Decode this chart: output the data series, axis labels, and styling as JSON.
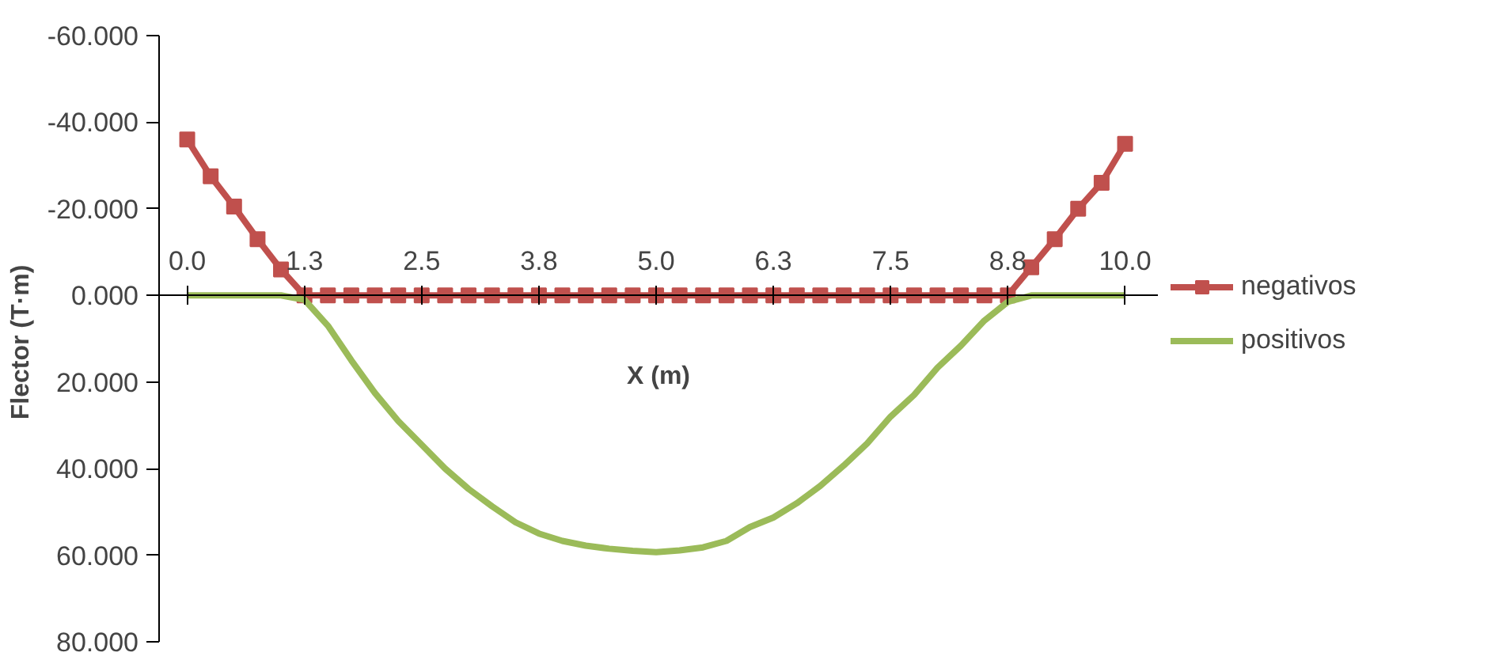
{
  "chart_data": {
    "type": "line",
    "xlabel": "X (m)",
    "ylabel": "Flector  (T·m)",
    "x": [
      0,
      0.25,
      0.5,
      0.75,
      1.0,
      1.25,
      1.5,
      1.75,
      2.0,
      2.25,
      2.5,
      2.75,
      3.0,
      3.25,
      3.5,
      3.75,
      4.0,
      4.25,
      4.5,
      4.75,
      5.0,
      5.25,
      5.5,
      5.75,
      6.0,
      6.25,
      6.5,
      6.75,
      7.0,
      7.25,
      7.5,
      7.75,
      8.0,
      8.25,
      8.5,
      8.75,
      9.0,
      9.25,
      9.5,
      9.75,
      10.0
    ],
    "series": [
      {
        "name": "negativos",
        "color": "#c0504d",
        "marker": "square",
        "values": [
          -36,
          -27.5,
          -20.5,
          -13,
          -6,
          0,
          0,
          0,
          0,
          0,
          0,
          0,
          0,
          0,
          0,
          0,
          0,
          0,
          0,
          0,
          0,
          0,
          0,
          0,
          0,
          0,
          0,
          0,
          0,
          0,
          0,
          0,
          0,
          0,
          0,
          0,
          -6.5,
          -13,
          -20,
          -26,
          -35
        ]
      },
      {
        "name": "positivos",
        "color": "#9bbb59",
        "marker": "none",
        "values": [
          0,
          0,
          0,
          0,
          0,
          1,
          7,
          15,
          22.5,
          29,
          34.5,
          40,
          44.7,
          48.7,
          52.4,
          55,
          56.7,
          57.8,
          58.5,
          59,
          59.3,
          58.9,
          58.2,
          56.7,
          53.5,
          51.3,
          48,
          44,
          39.3,
          34.2,
          28,
          23,
          16.7,
          11.6,
          5.8,
          1.5,
          0,
          0,
          0,
          0,
          0
        ]
      }
    ],
    "xlim": [
      -0.3,
      10.35
    ],
    "xticks": [
      {
        "value": 0,
        "label": "0.0"
      },
      {
        "value": 1.25,
        "label": "1.3"
      },
      {
        "value": 2.5,
        "label": "2.5"
      },
      {
        "value": 3.75,
        "label": "3.8"
      },
      {
        "value": 5,
        "label": "5.0"
      },
      {
        "value": 6.25,
        "label": "6.3"
      },
      {
        "value": 7.5,
        "label": "7.5"
      },
      {
        "value": 8.75,
        "label": "8.8"
      },
      {
        "value": 10,
        "label": "10.0"
      }
    ],
    "ylim": [
      80,
      -60
    ],
    "yticks": [
      {
        "value": -60,
        "label": "-60.000"
      },
      {
        "value": -40,
        "label": "-40.000"
      },
      {
        "value": -20,
        "label": "-20.000"
      },
      {
        "value": 0,
        "label": "0.000"
      },
      {
        "value": 20,
        "label": "20.000"
      },
      {
        "value": 40,
        "label": "40.000"
      },
      {
        "value": 60,
        "label": "60.000"
      },
      {
        "value": 80,
        "label": "80.000"
      }
    ],
    "grid": false,
    "legend": "right",
    "line_style": "solid"
  }
}
